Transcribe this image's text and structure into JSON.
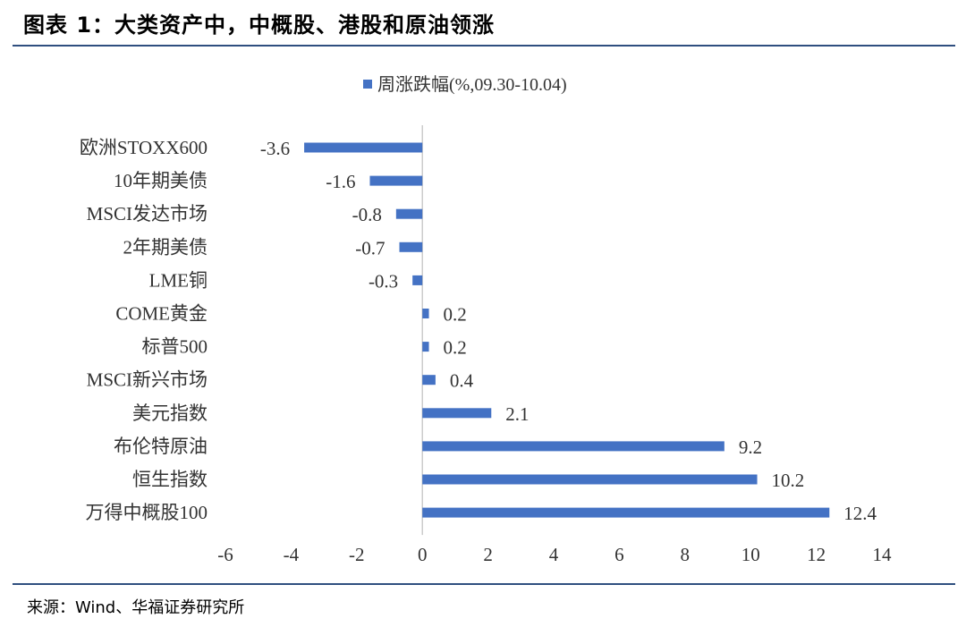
{
  "header": {
    "title": "图表 1：大类资产中，中概股、港股和原油领涨"
  },
  "footer": {
    "source": "来源：Wind、华福证券研究所"
  },
  "chart_data": {
    "type": "bar",
    "orientation": "horizontal",
    "title": "",
    "legend": {
      "position": "top",
      "entries": [
        "周涨跌幅(%,09.30-10.04)"
      ]
    },
    "categories": [
      "欧洲STOXX600",
      "10年期美债",
      "MSCI发达市场",
      "2年期美债",
      "LME铜",
      "COME黄金",
      "标普500",
      "MSCI新兴市场",
      "美元指数",
      "布伦特原油",
      "恒生指数",
      "万得中概股100"
    ],
    "series": [
      {
        "name": "周涨跌幅(%,09.30-10.04)",
        "values": [
          -3.6,
          -1.6,
          -0.8,
          -0.7,
          -0.3,
          0.2,
          0.2,
          0.4,
          2.1,
          9.2,
          10.2,
          12.4
        ],
        "labels": [
          "-3.6",
          "-1.6",
          "-0.8",
          "-0.7",
          "-0.3",
          "0.2",
          "0.2",
          "0.4",
          "2.1",
          "9.2",
          "10.2",
          "12.4"
        ]
      }
    ],
    "xlim": [
      -6,
      14
    ],
    "xticks": [
      -6,
      -4,
      -2,
      0,
      2,
      4,
      6,
      8,
      10,
      12,
      14
    ],
    "xlabel": "",
    "ylabel": "",
    "grid": false,
    "colors": {
      "bar": "#4472C4",
      "axis": "#bfbfbf"
    }
  }
}
